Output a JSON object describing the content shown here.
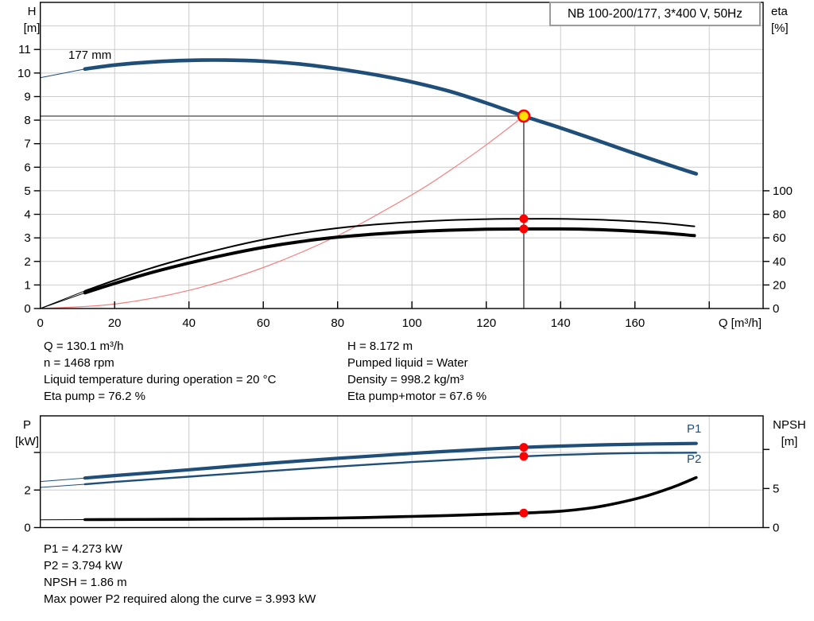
{
  "title_box": {
    "label": "NB 100-200/177, 3*400 V, 50Hz"
  },
  "curve_labels": {
    "impeller": "177 mm",
    "p1": "P1",
    "p2": "P2"
  },
  "axis_labels": {
    "top_left": [
      "H",
      "[m]"
    ],
    "top_right": [
      "eta",
      "[%]"
    ],
    "bottom_left": [
      "P",
      "[kW]"
    ],
    "bottom_right": [
      "NPSH",
      "[m]"
    ],
    "x": "Q [m³/h]"
  },
  "info_top": {
    "left": [
      "Q = 130.1 m³/h",
      "n = 1468 rpm",
      "Liquid temperature during operation = 20 °C",
      "Eta pump = 76.2 %"
    ],
    "right": [
      "H = 8.172 m",
      "Pumped liquid = Water",
      "Density = 998.2 kg/m³",
      "Eta pump+motor = 67.6 %"
    ]
  },
  "info_bottom": [
    "P1 = 4.273 kW",
    "P2 = 3.794 kW",
    "NPSH = 1.86 m",
    "Max power P2 required along the curve = 3.993 kW"
  ],
  "colors": {
    "curve_blue": "#1f4e79",
    "marker_red": "#fe0000",
    "duty_yellow": "#ffe100",
    "system_red": "#f28080",
    "grid": "#cbcbcb",
    "duty_hline": "#8c8c8c",
    "duty_vline": "#3f3f3f",
    "title_border": "#9c9c9c"
  },
  "chart_data": [
    {
      "type": "line",
      "title": "NB 100-200/177, 3*400 V, 50Hz",
      "xlabel": "Q [m³/h]",
      "ylabel": "H [m]",
      "ylabel_right": "eta [%]",
      "xlim": [
        0,
        194.5
      ],
      "ylim": [
        0,
        13
      ],
      "ylim_right": [
        0,
        260
      ],
      "grid": true,
      "xgrid": [
        20,
        40,
        60,
        80,
        100,
        120,
        140,
        160,
        180
      ],
      "ygrid": [
        1,
        2,
        3,
        4,
        5,
        6,
        7,
        8,
        9,
        10,
        11,
        12
      ],
      "xticks": [
        0,
        20,
        40,
        60,
        80,
        100,
        120,
        140,
        160,
        180
      ],
      "xtick_labels": [
        "0",
        "20",
        "40",
        "60",
        "80",
        "100",
        "120",
        "140",
        "160",
        ""
      ],
      "yticks": [
        0,
        1,
        2,
        3,
        4,
        5,
        6,
        7,
        8,
        9,
        10,
        11
      ],
      "yticks_right": [
        0,
        20,
        40,
        60,
        80,
        100
      ],
      "duty_lines": {
        "q": 130.1,
        "h": 8.172
      },
      "series": [
        {
          "name": "system-curve",
          "axis": "left",
          "color": "#f28080",
          "width": 1.2,
          "points": [
            [
              0,
              0
            ],
            [
              20,
              0.19
            ],
            [
              40,
              0.77
            ],
            [
              60,
              1.74
            ],
            [
              80,
              3.09
            ],
            [
              100,
              4.83
            ],
            [
              110,
              5.84
            ],
            [
              120,
              6.95
            ],
            [
              130.1,
              8.172
            ]
          ]
        },
        {
          "name": "eta-pump-curve",
          "axis": "right",
          "color": "#000000",
          "width": 2,
          "lead_until": 12,
          "points": [
            [
              0,
              0
            ],
            [
              12,
              15
            ],
            [
              20,
              24
            ],
            [
              30,
              34.5
            ],
            [
              40,
              43.5
            ],
            [
              50,
              51.5
            ],
            [
              60,
              58.5
            ],
            [
              70,
              64
            ],
            [
              80,
              68.3
            ],
            [
              90,
              71.3
            ],
            [
              100,
              73.5
            ],
            [
              110,
              75
            ],
            [
              120,
              75.9
            ],
            [
              130.1,
              76.2
            ],
            [
              140,
              76.2
            ],
            [
              150,
              75.5
            ],
            [
              160,
              74
            ],
            [
              168,
              72.3
            ],
            [
              176,
              69.8
            ]
          ]
        },
        {
          "name": "eta-pump-motor-curve",
          "axis": "right",
          "color": "#000000",
          "width": 4,
          "lead_until": 12,
          "points": [
            [
              0,
              0
            ],
            [
              12,
              13.3
            ],
            [
              20,
              21.3
            ],
            [
              30,
              30.6
            ],
            [
              40,
              38.6
            ],
            [
              50,
              45.7
            ],
            [
              60,
              51.9
            ],
            [
              70,
              56.8
            ],
            [
              80,
              60.6
            ],
            [
              90,
              63.2
            ],
            [
              100,
              65.2
            ],
            [
              110,
              66.5
            ],
            [
              120,
              67.3
            ],
            [
              130.1,
              67.6
            ],
            [
              140,
              67.6
            ],
            [
              150,
              67
            ],
            [
              160,
              65.6
            ],
            [
              168,
              64.1
            ],
            [
              176,
              61.9
            ]
          ]
        },
        {
          "name": "head-curve",
          "label": "177 mm",
          "axis": "left",
          "color": "#1f4e79",
          "width": 4.6,
          "lead_until": 12,
          "points": [
            [
              0,
              9.8
            ],
            [
              12,
              10.17
            ],
            [
              20,
              10.34
            ],
            [
              30,
              10.47
            ],
            [
              40,
              10.54
            ],
            [
              50,
              10.55
            ],
            [
              60,
              10.5
            ],
            [
              70,
              10.38
            ],
            [
              80,
              10.18
            ],
            [
              90,
              9.93
            ],
            [
              100,
              9.62
            ],
            [
              110,
              9.23
            ],
            [
              120,
              8.73
            ],
            [
              130.1,
              8.172
            ],
            [
              140,
              7.67
            ],
            [
              150,
              7.13
            ],
            [
              160,
              6.58
            ],
            [
              170,
              6.05
            ],
            [
              176.5,
              5.72
            ]
          ]
        }
      ],
      "markers": [
        {
          "name": "duty-point",
          "x": 130.1,
          "y": 8.172,
          "axis": "left",
          "style": "duty"
        },
        {
          "name": "eta-pump-point",
          "x": 130.1,
          "y": 76.2,
          "axis": "right",
          "style": "dot"
        },
        {
          "name": "eta-pump-motor-point",
          "x": 130.1,
          "y": 67.6,
          "axis": "right",
          "style": "dot"
        }
      ]
    },
    {
      "type": "line",
      "title": "",
      "xlabel": "",
      "ylabel": "P [kW]",
      "ylabel_right": "NPSH [m]",
      "xlim": [
        0,
        194.5
      ],
      "ylim": [
        0,
        5.95
      ],
      "ylim_right": [
        0,
        14.3
      ],
      "grid": true,
      "xgrid": [
        20,
        40,
        60,
        80,
        100,
        120,
        140,
        160,
        180
      ],
      "ygrid": [
        2,
        4
      ],
      "xticks": [],
      "xtick_labels": [],
      "yticks": [
        0,
        2,
        4
      ],
      "ytick_labels": [
        "0",
        "2",
        ""
      ],
      "yticks_right": [
        0,
        5,
        10
      ],
      "ytick_right_labels": [
        "0",
        "5",
        ""
      ],
      "series": [
        {
          "name": "p1-curve",
          "label": "P1",
          "axis": "left",
          "color": "#1f4e79",
          "width": 4.2,
          "lead_until": 12,
          "points": [
            [
              0,
              2.45
            ],
            [
              12,
              2.64
            ],
            [
              20,
              2.77
            ],
            [
              40,
              3.08
            ],
            [
              60,
              3.4
            ],
            [
              80,
              3.69
            ],
            [
              100,
              3.95
            ],
            [
              120,
              4.18
            ],
            [
              130.1,
              4.273
            ],
            [
              140,
              4.34
            ],
            [
              150,
              4.4
            ],
            [
              160,
              4.44
            ],
            [
              168,
              4.46
            ],
            [
              176.5,
              4.48
            ]
          ]
        },
        {
          "name": "p2-curve",
          "label": "P2",
          "axis": "left",
          "color": "#1f4e79",
          "width": 2.4,
          "lead_until": 12,
          "points": [
            [
              0,
              2.14
            ],
            [
              12,
              2.31
            ],
            [
              20,
              2.43
            ],
            [
              40,
              2.71
            ],
            [
              60,
              2.99
            ],
            [
              80,
              3.25
            ],
            [
              100,
              3.49
            ],
            [
              120,
              3.7
            ],
            [
              130.1,
              3.794
            ],
            [
              140,
              3.87
            ],
            [
              150,
              3.93
            ],
            [
              160,
              3.97
            ],
            [
              168,
              3.98
            ],
            [
              176.5,
              3.99
            ]
          ]
        },
        {
          "name": "npsh-curve",
          "axis": "right",
          "color": "#000000",
          "width": 3.6,
          "lead_until": 12,
          "points": [
            [
              0,
              1.0
            ],
            [
              12,
              1.02
            ],
            [
              40,
              1.06
            ],
            [
              60,
              1.12
            ],
            [
              80,
              1.22
            ],
            [
              100,
              1.42
            ],
            [
              110,
              1.55
            ],
            [
              120,
              1.7
            ],
            [
              130.1,
              1.86
            ],
            [
              140,
              2.1
            ],
            [
              148,
              2.5
            ],
            [
              155,
              3.1
            ],
            [
              162,
              3.9
            ],
            [
              168,
              4.8
            ],
            [
              172,
              5.5
            ],
            [
              176.5,
              6.4
            ]
          ]
        }
      ],
      "markers": [
        {
          "name": "p1-point",
          "x": 130.1,
          "y": 4.273,
          "axis": "left",
          "style": "dot"
        },
        {
          "name": "p2-point",
          "x": 130.1,
          "y": 3.794,
          "axis": "left",
          "style": "dot"
        },
        {
          "name": "npsh-point",
          "x": 130.1,
          "y": 1.86,
          "axis": "right",
          "style": "dot"
        }
      ]
    }
  ]
}
